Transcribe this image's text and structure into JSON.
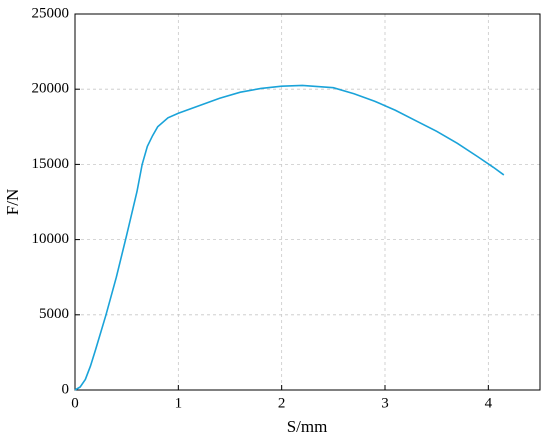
{
  "chart_data": {
    "type": "line",
    "x_label": "S/mm",
    "y_label": "F/N",
    "x": [
      0,
      0.05,
      0.1,
      0.15,
      0.2,
      0.3,
      0.4,
      0.5,
      0.6,
      0.65,
      0.7,
      0.75,
      0.8,
      0.9,
      1.0,
      1.2,
      1.4,
      1.6,
      1.8,
      2.0,
      2.2,
      2.5,
      2.7,
      2.9,
      3.1,
      3.3,
      3.5,
      3.7,
      3.9,
      4.05,
      4.15
    ],
    "series": [
      {
        "color": "#1aa3d9",
        "values": [
          0,
          200,
          700,
          1600,
          2700,
          5000,
          7500,
          10300,
          13200,
          15000,
          16200,
          16900,
          17500,
          18100,
          18400,
          18900,
          19400,
          19800,
          20050,
          20200,
          20250,
          20100,
          19700,
          19200,
          18600,
          17900,
          17200,
          16400,
          15500,
          14800,
          14300
        ]
      }
    ],
    "xlim": [
      0,
      4.5
    ],
    "xticks": [
      0,
      1,
      2,
      3,
      4
    ],
    "ylim": [
      0,
      25000
    ],
    "yticks": [
      0,
      5000,
      10000,
      15000,
      20000,
      25000
    ],
    "grid": true
  }
}
